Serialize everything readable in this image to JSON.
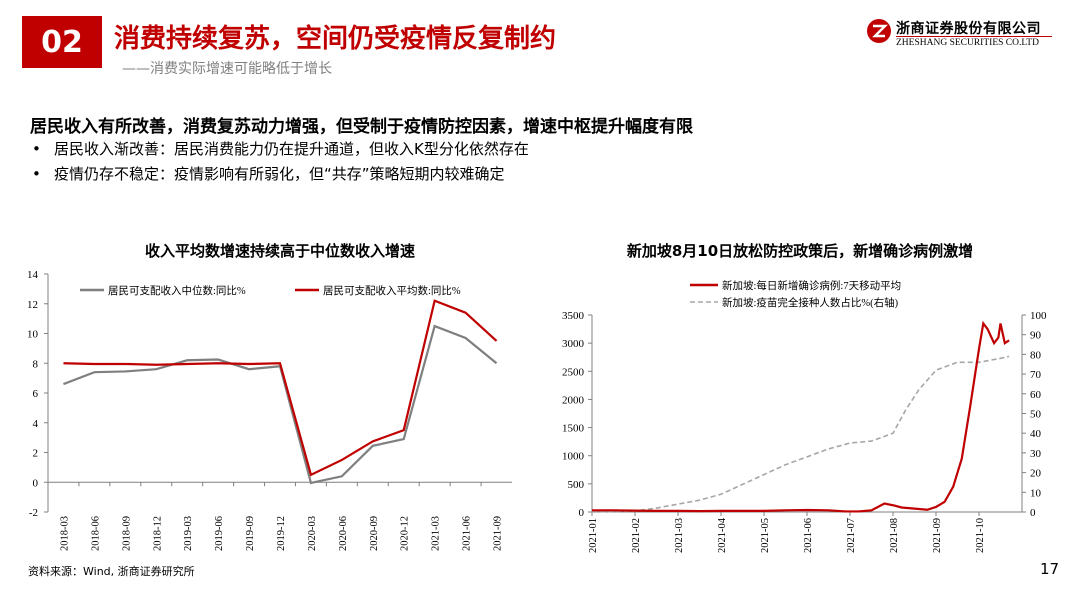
{
  "header": {
    "badge": "02",
    "title": "消费持续复苏，空间仍受疫情反复制约",
    "subtitle": "——消费实际增速可能略低于增长"
  },
  "brand": {
    "name_cn": "浙商证券股份有限公司",
    "name_en": "ZHESHANG SECURITIES CO.LTD",
    "logo_icon": "zheshang-logo-icon",
    "color": "#c00000"
  },
  "body": {
    "headline": "居民收入有所改善，消费复苏动力增强，但受制于疫情防控因素，增速中枢提升幅度有限",
    "bullet_symbol": "•",
    "bullets": [
      "居民收入渐改善：居民消费能力仍在提升通道，但收入K型分化依然存在",
      "疫情仍存不稳定：疫情影响有所弱化，但“共存”策略短期内较难确定"
    ]
  },
  "footer": {
    "source": "资料来源：Wind, 浙商证券研究所",
    "page": "17"
  },
  "chart_data": [
    {
      "type": "line",
      "title": "收入平均数增速持续高于中位数收入增速",
      "x": [
        "2018-03",
        "2018-06",
        "2018-09",
        "2018-12",
        "2019-03",
        "2019-06",
        "2019-09",
        "2019-12",
        "2020-03",
        "2020-06",
        "2020-09",
        "2020-12",
        "2021-03",
        "2021-06",
        "2021-09"
      ],
      "ylim": [
        -2,
        14
      ],
      "yticks": [
        "-2",
        "0",
        "2",
        "4",
        "6",
        "8",
        "10",
        "12",
        "14"
      ],
      "grid": false,
      "legend_position": "top",
      "series": [
        {
          "name": "居民可支配收入中位数:同比%",
          "color": "#7f7f7f",
          "values": [
            6.6,
            7.4,
            7.45,
            7.6,
            8.2,
            8.25,
            7.6,
            7.8,
            -0.05,
            0.4,
            2.45,
            2.9,
            10.5,
            9.7,
            8.0
          ]
        },
        {
          "name": "居民可支配收入平均数:同比%",
          "color": "#c00000",
          "values": [
            8.0,
            7.95,
            7.95,
            7.9,
            7.95,
            8.0,
            7.95,
            8.0,
            0.5,
            1.5,
            2.75,
            3.5,
            12.2,
            11.4,
            9.5
          ]
        }
      ]
    },
    {
      "type": "line",
      "title": "新加坡8月10日放松防控政策后，新增确诊病例激增",
      "x_ticks": [
        "2021-01",
        "2021-02",
        "2021-03",
        "2021-04",
        "2021-05",
        "2021-06",
        "2021-07",
        "2021-08",
        "2021-09",
        "2021-10"
      ],
      "ylim": [
        0,
        3500
      ],
      "yticks": [
        "0",
        "500",
        "1000",
        "1500",
        "2000",
        "2500",
        "3000",
        "3500"
      ],
      "y2lim": [
        0,
        100
      ],
      "y2ticks": [
        "0",
        "10",
        "20",
        "30",
        "40",
        "50",
        "60",
        "70",
        "80",
        "90",
        "100"
      ],
      "grid": false,
      "legend_position": "top",
      "series": [
        {
          "name": "新加坡:每日新增确诊病例:7天移动平均",
          "color": "#c00000",
          "axis": "left",
          "x": [
            0,
            0.5,
            1.0,
            1.5,
            2.0,
            2.5,
            3.0,
            3.5,
            4.0,
            4.5,
            5.0,
            5.5,
            5.9,
            6.2,
            6.5,
            6.8,
            7.0,
            7.2,
            7.5,
            7.8,
            8.0,
            8.2,
            8.4,
            8.6,
            8.8,
            9.0,
            9.1,
            9.2,
            9.35,
            9.45,
            9.5,
            9.6,
            9.7
          ],
          "values": [
            30,
            30,
            25,
            20,
            20,
            15,
            20,
            20,
            20,
            30,
            35,
            30,
            10,
            10,
            30,
            150,
            120,
            80,
            60,
            40,
            90,
            180,
            450,
            950,
            1900,
            2900,
            3350,
            3250,
            3000,
            3100,
            3350,
            3000,
            3050
          ]
        },
        {
          "name": "新加坡:疫苗完全接种人数占比%(右轴)",
          "color": "#a6a6a6",
          "axis": "right",
          "dashed": true,
          "x": [
            0,
            1.0,
            1.5,
            2.0,
            2.5,
            3.0,
            3.5,
            4.0,
            4.5,
            5.0,
            5.5,
            6.0,
            6.5,
            7.0,
            7.3,
            7.6,
            8.0,
            8.5,
            9.0,
            9.5,
            9.7
          ],
          "values": [
            0,
            0.5,
            2,
            4,
            6,
            9,
            14,
            19,
            24,
            28,
            32,
            35,
            36,
            40,
            52,
            62,
            72,
            76,
            76,
            78,
            79
          ]
        }
      ]
    }
  ]
}
